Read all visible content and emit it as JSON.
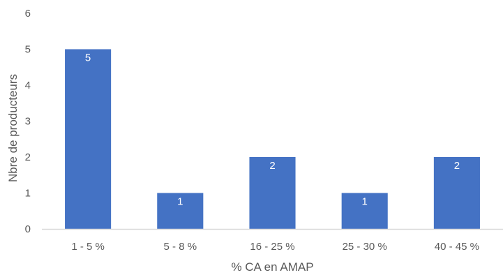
{
  "chart_data": {
    "type": "bar",
    "title": "",
    "xlabel": "% CA en AMAP",
    "ylabel": "Nbre de producteurs",
    "categories": [
      "1 - 5 %",
      "5 - 8 %",
      "16 - 25 %",
      "25 - 30 %",
      "40 - 45 %"
    ],
    "values": [
      5,
      1,
      2,
      1,
      2
    ],
    "data_labels": [
      "5",
      "1",
      "2",
      "1",
      "2"
    ],
    "ylim": [
      0,
      6
    ],
    "yticks": [
      "0",
      "1",
      "2",
      "3",
      "4",
      "5",
      "6"
    ],
    "grid": false,
    "legend": "none",
    "colors": {
      "bar": "#4472C4",
      "axis": "#D9D9D9",
      "text": "#595959",
      "data_label": "#FFFFFF"
    }
  }
}
